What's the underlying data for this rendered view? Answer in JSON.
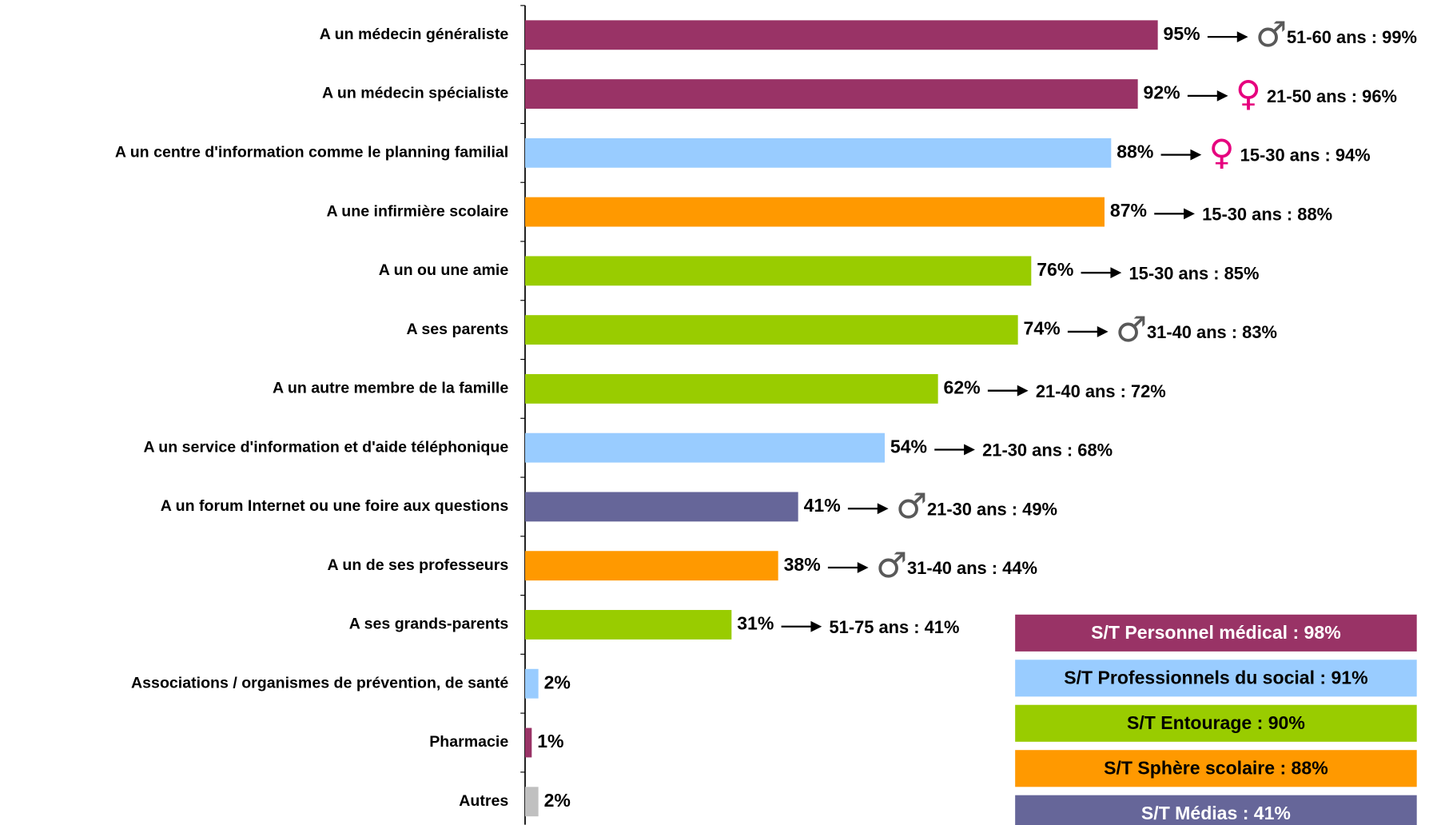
{
  "chart_data": {
    "type": "hbar",
    "xlim": [
      0,
      100
    ],
    "categories": [
      "A un médecin généraliste",
      "A un médecin spécialiste",
      "A un centre d'information comme le planning familial",
      "A une infirmière scolaire",
      "A un ou une amie",
      "A ses parents",
      "A un autre membre de la famille",
      "A un service d'information et d'aide téléphonique",
      "A un forum Internet ou une foire aux questions",
      "A un de ses professeurs",
      "A ses grands-parents",
      "Associations / organismes de prévention, de santé",
      "Pharmacie",
      "Autres"
    ],
    "values": [
      95,
      92,
      88,
      87,
      76,
      74,
      62,
      54,
      41,
      38,
      31,
      2,
      1,
      2
    ],
    "value_labels": [
      "95%",
      "92%",
      "88%",
      "87%",
      "76%",
      "74%",
      "62%",
      "54%",
      "41%",
      "38%",
      "31%",
      "2%",
      "1%",
      "2%"
    ],
    "colors": [
      "#993366",
      "#993366",
      "#99ccff",
      "#ff9900",
      "#99cc00",
      "#99cc00",
      "#99cc00",
      "#99ccff",
      "#666699",
      "#ff9900",
      "#99cc00",
      "#99ccff",
      "#993366",
      "#c0c0c0"
    ],
    "annotations": [
      {
        "symbol": "♂",
        "symbol_color": "#595959",
        "text": "51-60 ans : 99%"
      },
      {
        "symbol": "♀",
        "symbol_color": "#e6007e",
        "text": "21-50 ans : 96%"
      },
      {
        "symbol": "♀",
        "symbol_color": "#e6007e",
        "text": "15-30 ans : 94%"
      },
      {
        "text": "15-30 ans : 88%"
      },
      {
        "text": "15-30 ans : 85%"
      },
      {
        "symbol": "♂",
        "symbol_color": "#595959",
        "text": "31-40 ans : 83%"
      },
      {
        "text": "21-40 ans : 72%"
      },
      {
        "text": "21-30 ans : 68%"
      },
      {
        "symbol": "♂",
        "symbol_color": "#595959",
        "text": "21-30 ans : 49%"
      },
      {
        "symbol": "♂",
        "symbol_color": "#595959",
        "text": "31-40 ans : 44%"
      },
      {
        "text": "51-75 ans : 41%"
      },
      null,
      null,
      null
    ],
    "legend": [
      {
        "text": "S/T Personnel médical : 98%",
        "color": "#993366",
        "text_color": "#ffffff"
      },
      {
        "text": "S/T Professionnels du social : 91%",
        "color": "#99ccff",
        "text_color": "#000000"
      },
      {
        "text": "S/T Entourage : 90%",
        "color": "#99cc00",
        "text_color": "#000000"
      },
      {
        "text": "S/T Sphère scolaire : 88%",
        "color": "#ff9900",
        "text_color": "#000000"
      },
      {
        "text": "S/T Médias : 41%",
        "color": "#666699",
        "text_color": "#ffffff"
      }
    ]
  }
}
